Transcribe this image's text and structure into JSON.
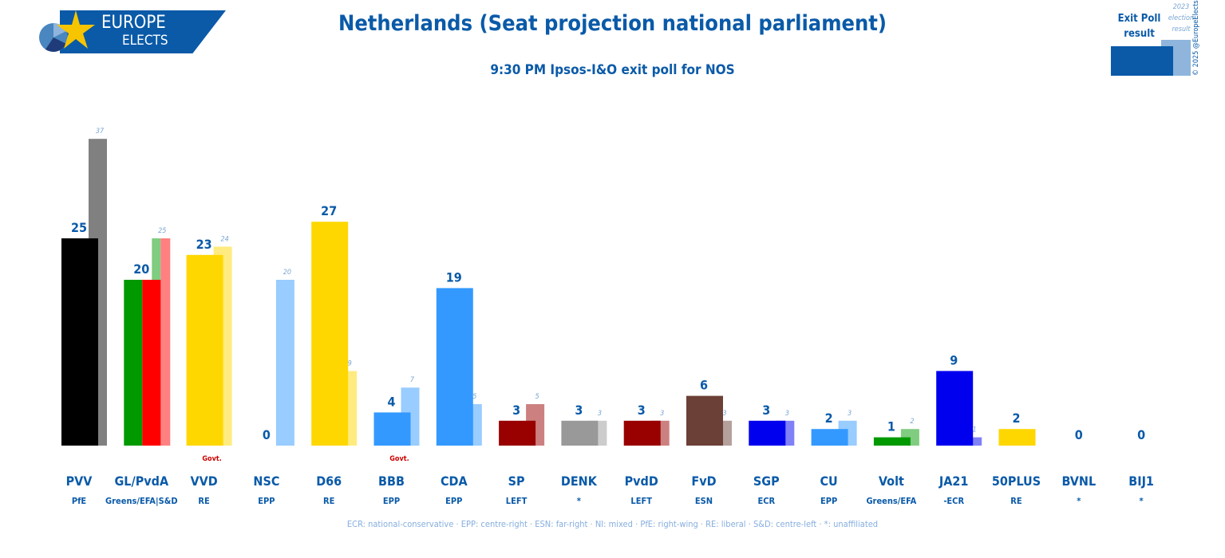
{
  "header": {
    "title": "Netherlands (Seat projection national parliament)",
    "subtitle": "9:30 PM Ipsos-I&O exit poll for NOS",
    "logo_text": [
      "EUROPE",
      "ELECTS"
    ],
    "copyright": "© 2025 @EuropeElects"
  },
  "legend": {
    "current": "Exit Poll result",
    "previous": "2023 election result"
  },
  "footnote": "ECR: national-conservative · EPP: centre-right · ESN: far-right · NI: mixed · PfE: right-wing · RE: liberal · S&D: centre-left · *: unaffiliated",
  "chart_data": {
    "type": "bar",
    "categories": [
      "PVV",
      "GL/PvdA",
      "VVD",
      "NSC",
      "D66",
      "BBB",
      "CDA",
      "SP",
      "DENK",
      "PvdD",
      "FvD",
      "SGP",
      "CU",
      "Volt",
      "JA21",
      "50PLUS",
      "BVNL",
      "BIJ1"
    ],
    "groups": [
      "PfE",
      "Greens/EFA|S&D",
      "RE",
      "EPP",
      "RE",
      "EPP",
      "EPP",
      "LEFT",
      "*",
      "LEFT",
      "ESN",
      "ECR",
      "EPP",
      "Greens/EFA",
      "-ECR",
      "RE",
      "*",
      "*"
    ],
    "series": [
      {
        "name": "Exit Poll result",
        "values": [
          25,
          20,
          23,
          0,
          27,
          4,
          19,
          3,
          3,
          3,
          6,
          3,
          2,
          1,
          9,
          2,
          0,
          0
        ]
      },
      {
        "name": "2023 election result",
        "values": [
          37,
          25,
          24,
          20,
          9,
          7,
          5,
          5,
          3,
          3,
          3,
          3,
          3,
          2,
          1,
          null,
          null,
          null
        ]
      }
    ],
    "colors": [
      "#000000",
      [
        "#009900",
        "#ff0000"
      ],
      "#ffd700",
      "#99ccff",
      "#ffd700",
      "#3399ff",
      "#3399ff",
      "#990000",
      "#999999",
      "#990000",
      "#6b4037",
      "#0000ee",
      "#3399ff",
      "#009900",
      "#0000ee",
      "#ffd700",
      "#999999",
      "#999999"
    ],
    "prev_colors": [
      "#808080",
      [
        "#80cc80",
        "#ff8080"
      ],
      "#ffeb80",
      "#99ccff",
      "#ffeb80",
      "#99ccff",
      "#99ccff",
      "#cc8080",
      "#cccccc",
      "#cc8080",
      "#b5a09b",
      "#8080f7",
      "#99ccff",
      "#80cc80",
      "#8080f7",
      "#ffeb80",
      "#cccccc",
      "#cccccc"
    ],
    "annotations": [
      {
        "party": "VVD",
        "text": "Govt."
      },
      {
        "party": "BBB",
        "text": "Govt."
      }
    ],
    "ylim": [
      0,
      37
    ]
  }
}
